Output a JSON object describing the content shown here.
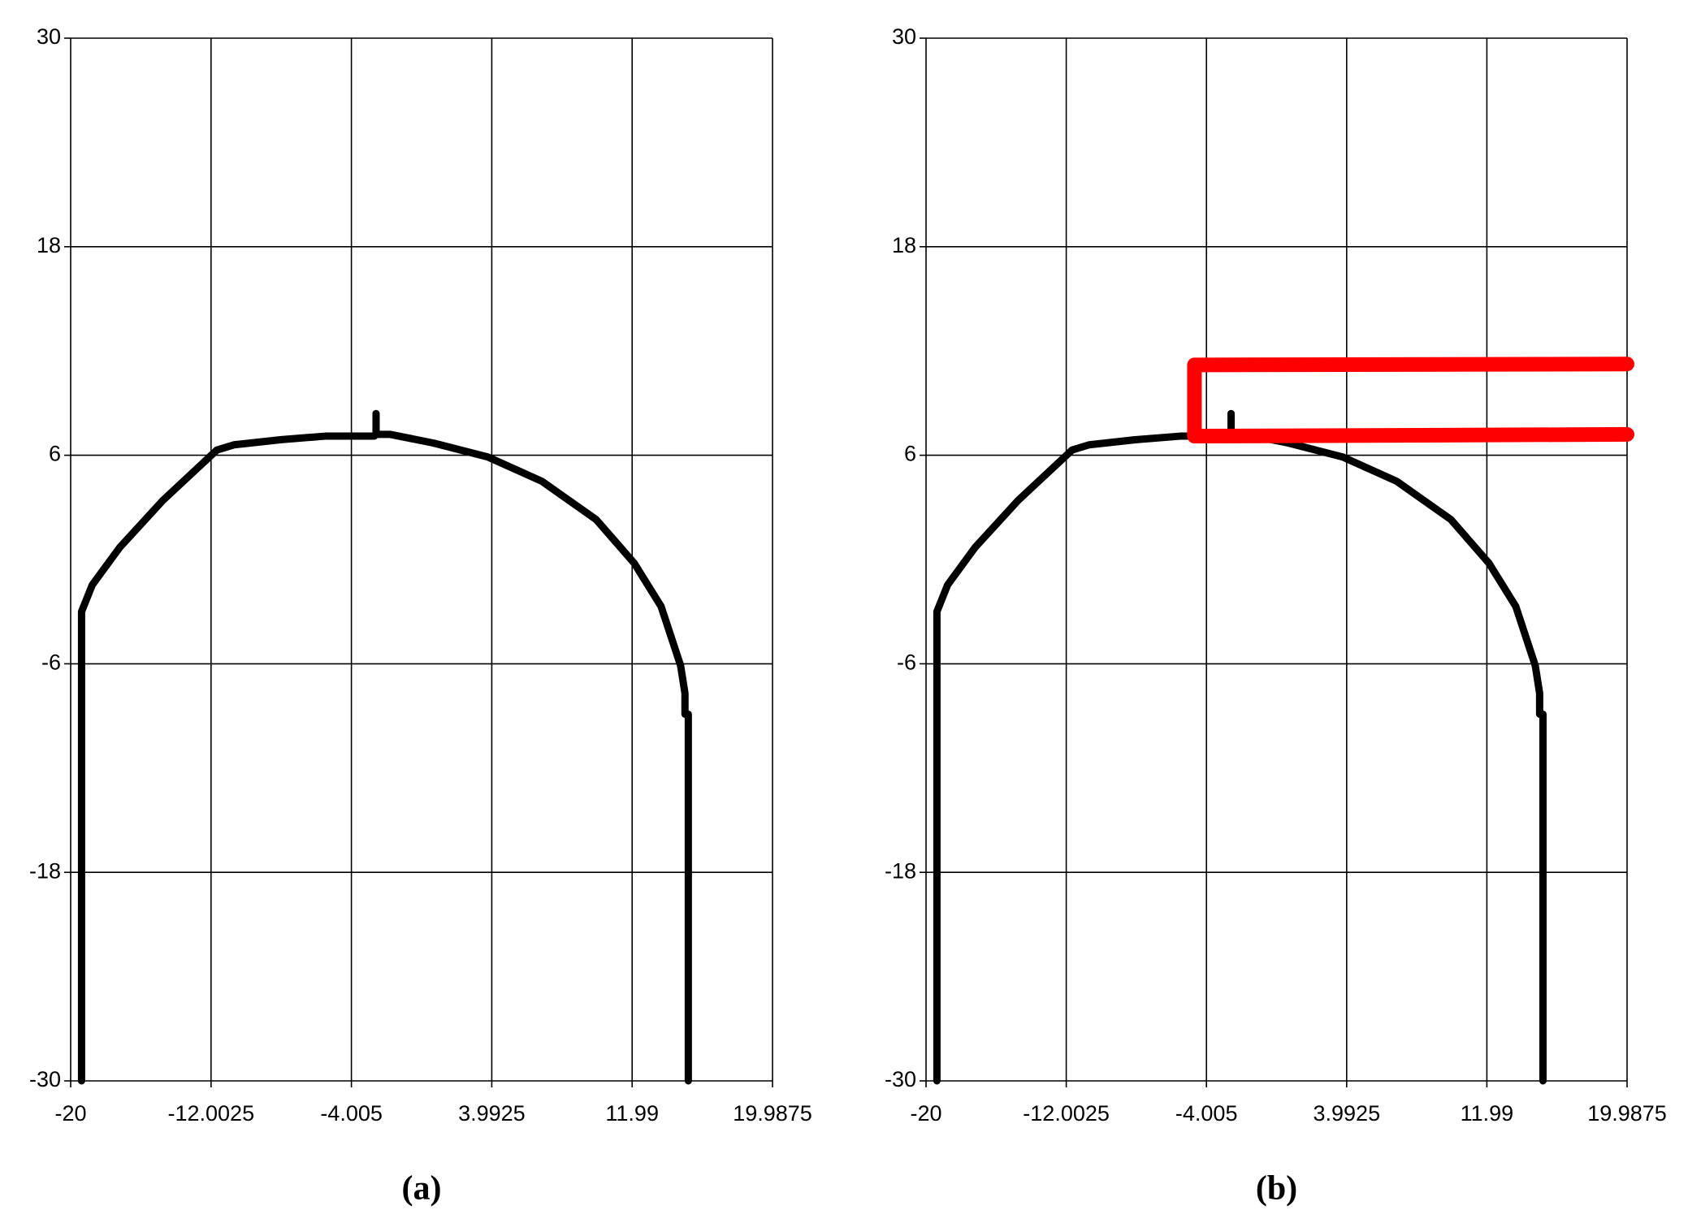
{
  "chart_data": [
    {
      "type": "line",
      "caption": "(a)",
      "xlim": [
        -20,
        19.9875
      ],
      "xticks": [
        -20,
        -12.0025,
        -4.005,
        3.9925,
        11.99,
        19.9875
      ],
      "ylim": [
        -30,
        30
      ],
      "yticks": [
        -30,
        -18,
        -6,
        6,
        18,
        30
      ],
      "grid": true,
      "series": [
        {
          "color": "#000000",
          "x": [
            -19.38,
            -19.38,
            -18.77,
            -17.2,
            -14.75,
            -11.67,
            -10.7,
            -8.0,
            -5.5,
            -2.7,
            -2.6,
            -2.6,
            -2.6,
            -1.79,
            0.68,
            3.77,
            6.85,
            9.94,
            12.1,
            13.64,
            14.75,
            15.0,
            15.0,
            15.19,
            15.19
          ],
          "values": [
            -30,
            -3.0,
            -1.46,
            0.7,
            3.4,
            6.3,
            6.6,
            6.9,
            7.1,
            7.1,
            7.2,
            8.4,
            7.2,
            7.2,
            6.7,
            5.9,
            4.5,
            2.3,
            -0.2,
            -2.7,
            -6.1,
            -7.7,
            -8.9,
            -8.9,
            -30
          ]
        }
      ]
    },
    {
      "type": "line",
      "caption": "(b)",
      "xlim": [
        -20,
        19.9875
      ],
      "xticks": [
        -20,
        -12.0025,
        -4.005,
        3.9925,
        11.99,
        19.9875
      ],
      "ylim": [
        -30,
        30
      ],
      "yticks": [
        -30,
        -18,
        -6,
        6,
        18,
        30
      ],
      "grid": true,
      "series": [
        {
          "color": "#000000",
          "x": [
            -19.38,
            -19.38,
            -18.77,
            -17.2,
            -14.75,
            -11.67,
            -10.7,
            -8.0,
            -5.5,
            -2.7,
            -2.6,
            -2.6,
            -2.6,
            -1.79,
            0.68,
            3.77,
            6.85,
            9.94,
            12.1,
            13.64,
            14.75,
            15.0,
            15.0,
            15.19,
            15.19
          ],
          "values": [
            -30,
            -3.0,
            -1.46,
            0.7,
            3.4,
            6.3,
            6.6,
            6.9,
            7.1,
            7.1,
            7.2,
            8.4,
            7.2,
            7.2,
            6.7,
            5.9,
            4.5,
            2.3,
            -0.2,
            -2.7,
            -6.1,
            -7.7,
            -8.9,
            -8.9,
            -30
          ]
        },
        {
          "color": "#ff0000",
          "x": [
            19.9875,
            -4.69,
            -4.69,
            19.9875
          ],
          "values": [
            11.25,
            11.2,
            7.1,
            7.2
          ]
        }
      ]
    }
  ]
}
